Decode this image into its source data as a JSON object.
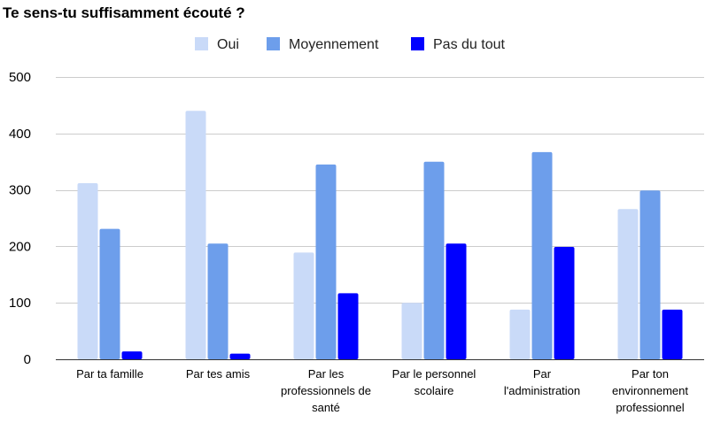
{
  "chart_data": {
    "type": "bar",
    "title": "Te sens-tu suffisamment écouté ?",
    "xlabel": "",
    "ylabel": "",
    "ylim": [
      0,
      500
    ],
    "yticks": [
      0,
      100,
      200,
      300,
      400,
      500
    ],
    "grid": true,
    "legend_position": "top",
    "categories": [
      [
        "Par ta famille"
      ],
      [
        "Par tes amis"
      ],
      [
        "Par les",
        "professionnels de",
        "santé"
      ],
      [
        "Par le personnel",
        "scolaire"
      ],
      [
        "Par",
        "l'administration"
      ],
      [
        "Par ton",
        "environnement",
        "professionnel"
      ]
    ],
    "series": [
      {
        "name": "Oui",
        "color": "#c9daf8",
        "values": [
          312,
          440,
          189,
          100,
          88,
          266
        ]
      },
      {
        "name": "Moyennement",
        "color": "#6d9eeb",
        "values": [
          231,
          205,
          345,
          350,
          367,
          299
        ]
      },
      {
        "name": "Pas du tout",
        "color": "#0000ff",
        "values": [
          14,
          10,
          117,
          205,
          199,
          88
        ]
      }
    ]
  }
}
